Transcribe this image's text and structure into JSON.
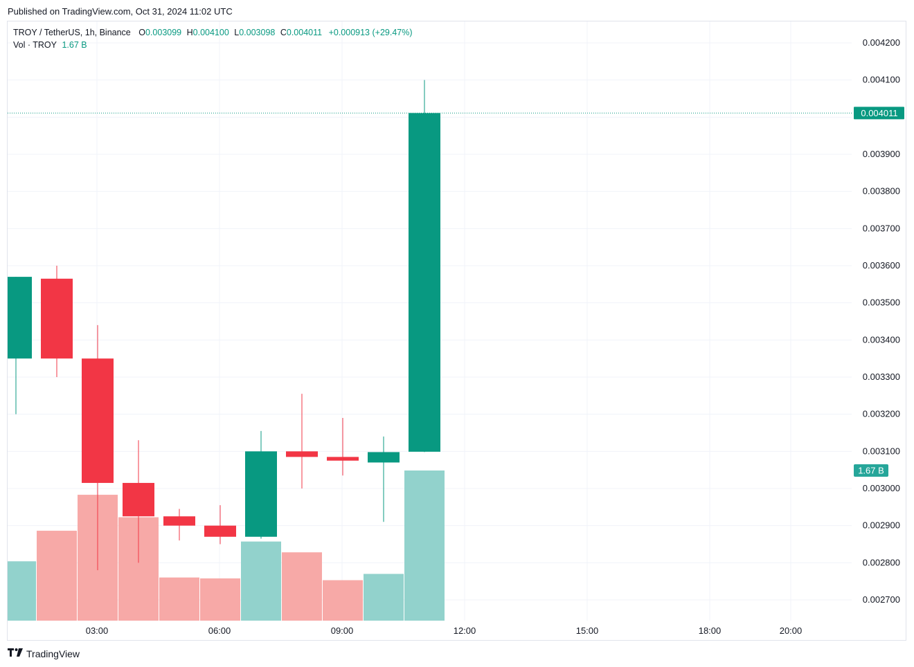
{
  "header": {
    "published": "Published on TradingView.com, Oct 31, 2024 11:02 UTC"
  },
  "legend": {
    "symbol": "TROY / TetherUS, 1h, Binance",
    "o_label": "O",
    "o_value": "0.003099",
    "h_label": "H",
    "h_value": "0.004100",
    "l_label": "L",
    "l_value": "0.003098",
    "c_label": "C",
    "c_value": "0.004011",
    "change": "+0.000913 (+29.47%)",
    "vol_label": "Vol · TROY",
    "vol_value": "1.67 B"
  },
  "footer": {
    "brand": "TradingView",
    "logo_icon": "tradingview-logo-icon"
  },
  "colors": {
    "up": "#089981",
    "down": "#f23645",
    "vol_up": "#92d2cc",
    "vol_down": "#f7a9a7",
    "grid": "#f0f3fa"
  },
  "chart_data": {
    "type": "candlestick",
    "y_axis_ticks": [
      "0.004200",
      "0.004100",
      "0.003900",
      "0.003800",
      "0.003700",
      "0.003600",
      "0.003500",
      "0.003400",
      "0.003300",
      "0.003200",
      "0.003100",
      "0.003000",
      "0.002900",
      "0.002800",
      "0.002700"
    ],
    "x_axis_ticks": [
      "03:00",
      "06:00",
      "09:00",
      "12:00",
      "15:00",
      "18:00",
      "20:00"
    ],
    "ylim": [
      0.00265,
      0.00423
    ],
    "last_price_label": "0.004011",
    "volume_label": "1.67 B",
    "candles": [
      {
        "time": "01:00",
        "open": 0.00335,
        "high": 0.00357,
        "low": 0.0032,
        "close": 0.00357
      },
      {
        "time": "02:00",
        "open": 0.003565,
        "high": 0.0036,
        "low": 0.0033,
        "close": 0.00335
      },
      {
        "time": "03:00",
        "open": 0.00335,
        "high": 0.00344,
        "low": 0.00278,
        "close": 0.003015
      },
      {
        "time": "04:00",
        "open": 0.003015,
        "high": 0.00313,
        "low": 0.0028,
        "close": 0.002925
      },
      {
        "time": "05:00",
        "open": 0.002925,
        "high": 0.002945,
        "low": 0.00286,
        "close": 0.0029
      },
      {
        "time": "06:00",
        "open": 0.0029,
        "high": 0.002955,
        "low": 0.00285,
        "close": 0.00287
      },
      {
        "time": "07:00",
        "open": 0.00287,
        "high": 0.003155,
        "low": 0.002865,
        "close": 0.0031
      },
      {
        "time": "08:00",
        "open": 0.0031,
        "high": 0.003255,
        "low": 0.003,
        "close": 0.003085
      },
      {
        "time": "09:00",
        "open": 0.003085,
        "high": 0.00319,
        "low": 0.003035,
        "close": 0.003075
      },
      {
        "time": "10:00",
        "open": 0.00307,
        "high": 0.00314,
        "low": 0.00291,
        "close": 0.003098
      },
      {
        "time": "11:00",
        "open": 0.003099,
        "high": 0.0041,
        "low": 0.003098,
        "close": 0.004011
      }
    ],
    "volume": [
      {
        "time": "01:00",
        "direction": "up",
        "value": 0.66
      },
      {
        "time": "02:00",
        "direction": "down",
        "value": 1.0
      },
      {
        "time": "03:00",
        "direction": "down",
        "value": 1.4
      },
      {
        "time": "04:00",
        "direction": "down",
        "value": 1.15
      },
      {
        "time": "05:00",
        "direction": "down",
        "value": 0.48
      },
      {
        "time": "06:00",
        "direction": "down",
        "value": 0.47
      },
      {
        "time": "07:00",
        "direction": "up",
        "value": 0.88
      },
      {
        "time": "08:00",
        "direction": "down",
        "value": 0.76
      },
      {
        "time": "09:00",
        "direction": "down",
        "value": 0.45
      },
      {
        "time": "10:00",
        "direction": "up",
        "value": 0.52
      },
      {
        "time": "11:00",
        "direction": "up",
        "value": 1.67
      }
    ]
  }
}
